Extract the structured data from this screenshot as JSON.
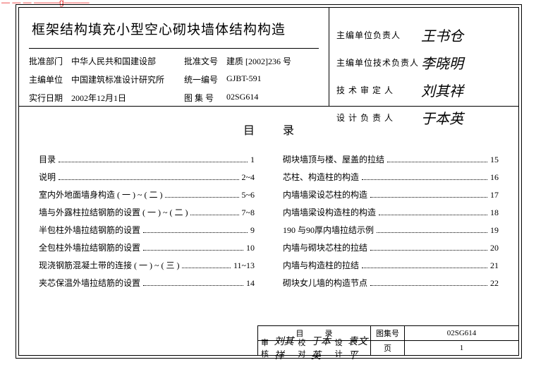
{
  "watermark": "— — — ———g———",
  "title": "框架结构填充小型空心砌块墙体结构构造",
  "meta": {
    "rows": [
      {
        "l1": "批准部门",
        "v1": "中华人民共和国建设部",
        "l2": "批准文号",
        "v2": "建质 [2002]236 号"
      },
      {
        "l1": "主编单位",
        "v1": "中国建筑标准设计研究所",
        "l2": "统一编号",
        "v2": "GJBT-591"
      },
      {
        "l1": "实行日期",
        "v1": "2002年12月1日",
        "l2": "图 集 号",
        "v2": "02SG614"
      }
    ]
  },
  "signers": [
    {
      "label": "主编单位负责人",
      "sig": "王书仓"
    },
    {
      "label": "主编单位技术负责人",
      "sig": "李晓明"
    },
    {
      "label": "技 术 审 定 人",
      "sig": "刘其祥"
    },
    {
      "label": "设 计 负 责 人",
      "sig": "于本英"
    }
  ],
  "tocTitle": "目录",
  "toc": {
    "left": [
      {
        "t": "目录",
        "p": "1"
      },
      {
        "t": "说明",
        "p": "2~4"
      },
      {
        "t": "室内外地面墙身构造 ( 一 ) ~ ( 二 )",
        "p": "5~6"
      },
      {
        "t": "墙与外露柱拉结钢筋的设置 ( 一 ) ~ ( 二 )",
        "p": "7~8"
      },
      {
        "t": "半包柱外墙拉结钢筋的设置",
        "p": "9"
      },
      {
        "t": "全包柱外墙拉结钢筋的设置",
        "p": "10"
      },
      {
        "t": "现浇钢筋混凝土带的连接 ( 一 ) ~ ( 三 )",
        "p": "11~13"
      },
      {
        "t": "夹芯保温外墙拉结筋的设置",
        "p": "14"
      }
    ],
    "right": [
      {
        "t": "砌块墙顶与楼、屋盖的拉结",
        "p": "15"
      },
      {
        "t": "芯柱、构造柱的构造",
        "p": "16"
      },
      {
        "t": "内墙墙梁设芯柱的构造",
        "p": "17"
      },
      {
        "t": "内墙墙梁设构造柱的构造",
        "p": "18"
      },
      {
        "t": "190 与90厚内墙拉结示例",
        "p": "19"
      },
      {
        "t": "内墙与砌块芯柱的拉结",
        "p": "20"
      },
      {
        "t": "内墙与构造柱的拉结",
        "p": "21"
      },
      {
        "t": "砌块女儿墙的构造节点",
        "p": "22"
      }
    ]
  },
  "footer": {
    "mulu": "目录",
    "reviewLabel": "审核",
    "reviewSig": "刘其祥",
    "checkLabel": "校对",
    "checkSig": "于本英",
    "designLabel": "设计",
    "designSig": "袁文平",
    "tujiLabel": "图集号",
    "tujiVal": "02SG614",
    "pageLabel": "页",
    "pageVal": "1"
  }
}
